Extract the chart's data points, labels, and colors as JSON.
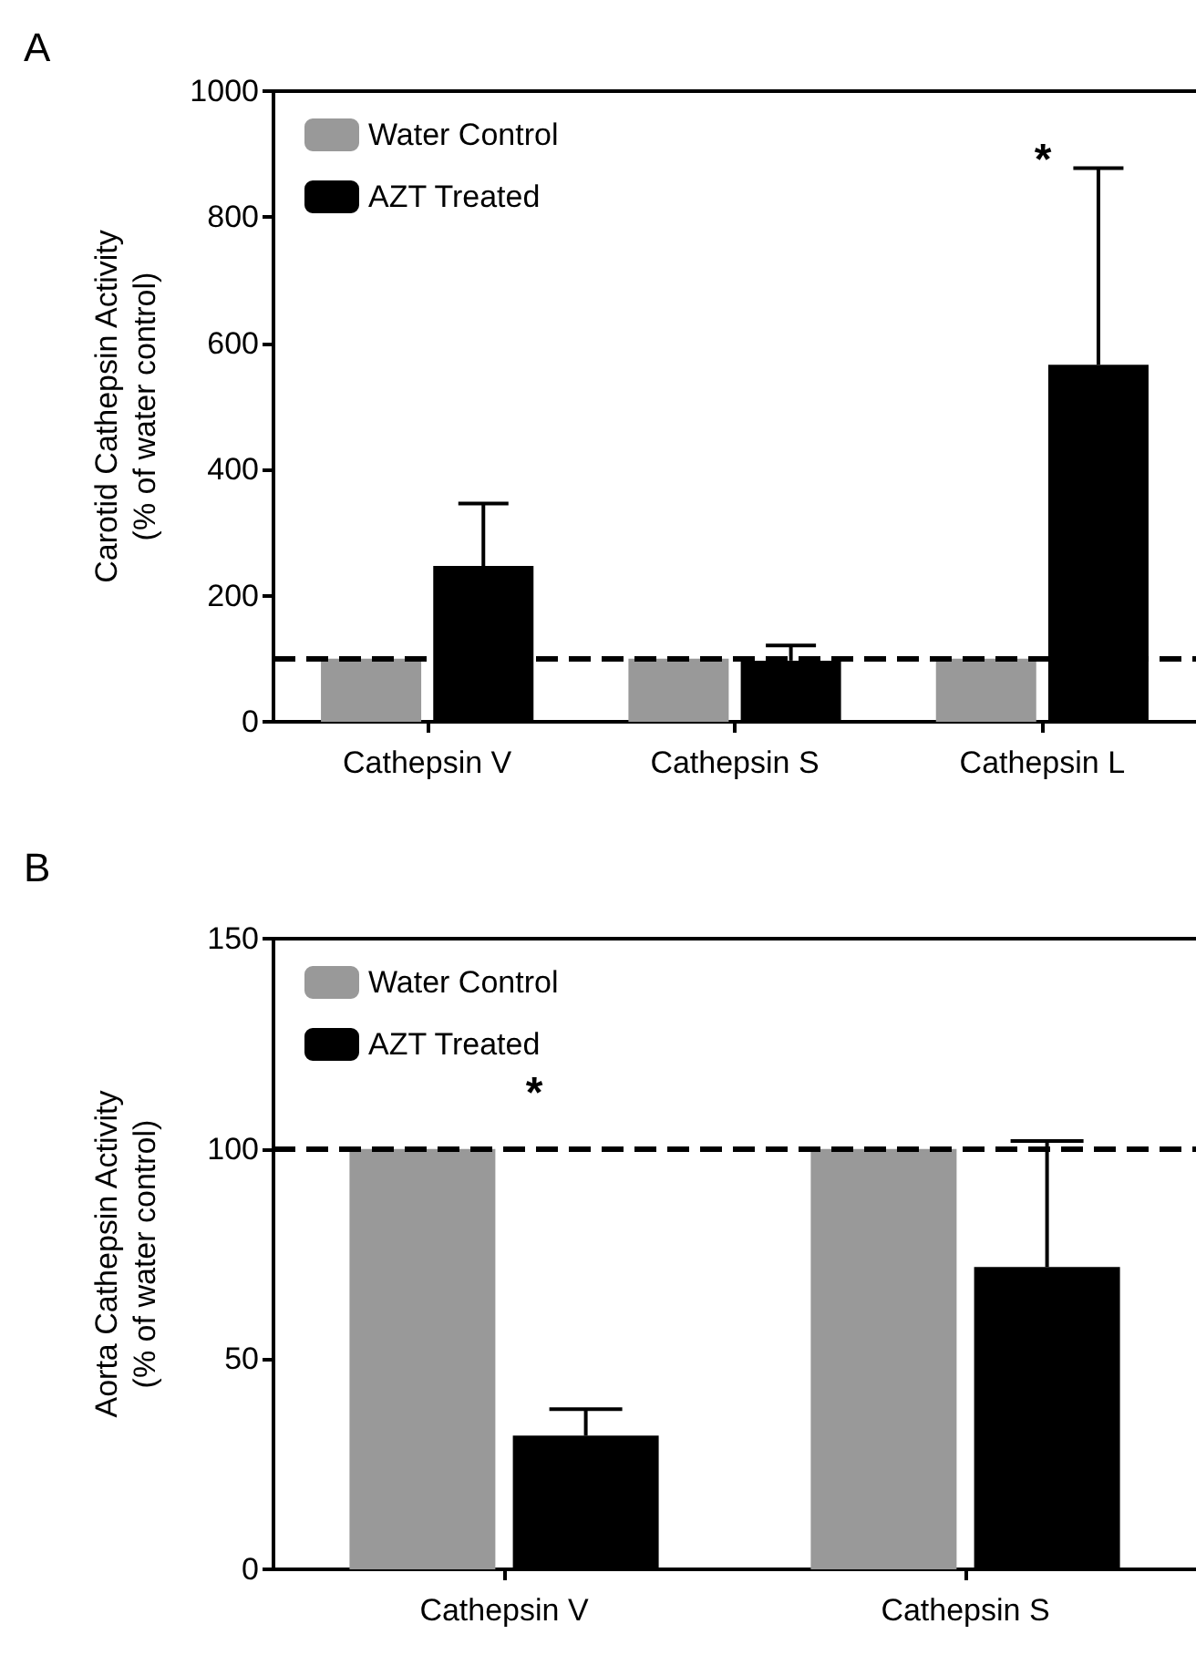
{
  "chart_data": [
    {
      "type": "bar",
      "title": "A",
      "ylabel": "Carotid Cathepsin Activity\n(% of water control)",
      "categories": [
        "Cathepsin V",
        "Cathepsin S",
        "Cathepsin L"
      ],
      "series": [
        {
          "name": "Water Control",
          "color": "#999999",
          "values": [
            100,
            100,
            100
          ]
        },
        {
          "name": "AZT Treated",
          "color": "#000000",
          "values": [
            247,
            97,
            566
          ],
          "errors": [
            99,
            24,
            312
          ]
        }
      ],
      "ylim": [
        0,
        1000
      ],
      "yticks": [
        0,
        200,
        400,
        600,
        800,
        1000
      ],
      "ref_lines": [
        {
          "axis": "y",
          "value": 100,
          "color": "#000000",
          "line_style": "dashed"
        }
      ],
      "annotations": [
        "*"
      ],
      "legend": "top left",
      "grid": false
    },
    {
      "type": "bar",
      "title": "B",
      "ylabel": "Aorta Cathepsin Activity\n(% of water control)",
      "categories": [
        "Cathepsin V",
        "Cathepsin S"
      ],
      "series": [
        {
          "name": "Water Control",
          "color": "#999999",
          "values": [
            100,
            100
          ]
        },
        {
          "name": "AZT Treated",
          "color": "#000000",
          "values": [
            31.8,
            71.9
          ],
          "errors": [
            6.3,
            30
          ]
        }
      ],
      "ylim": [
        0,
        150
      ],
      "yticks": [
        0,
        50,
        100,
        150
      ],
      "ref_lines": [
        {
          "axis": "y",
          "value": 100,
          "color": "#000000",
          "line_style": "dashed"
        }
      ],
      "annotations": [
        "*"
      ],
      "legend": "top left",
      "grid": false
    }
  ]
}
